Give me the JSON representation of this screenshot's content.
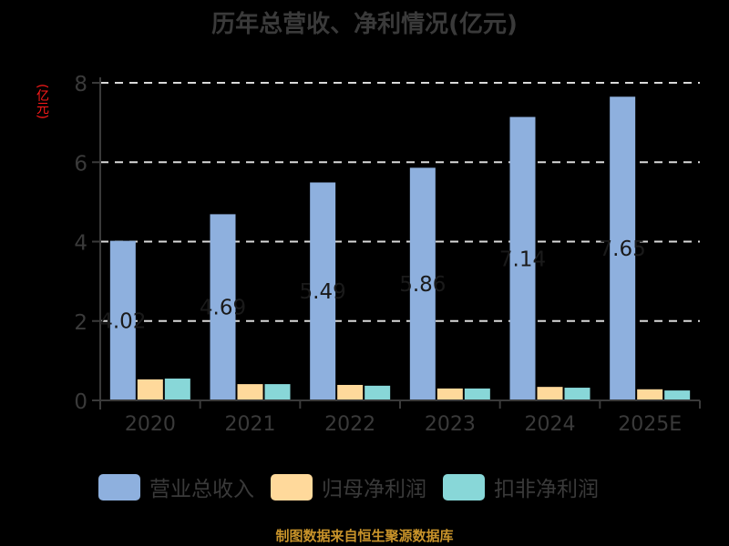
{
  "title": "历年总营收、净利情况(亿元)",
  "y_unit_label": "(亿元)",
  "source_note": "制图数据来自恒生聚源数据库",
  "legend": [
    {
      "label": "营业总收入",
      "color": "#8eb0de"
    },
    {
      "label": "归母净利润",
      "color": "#ffd99b"
    },
    {
      "label": "扣非净利润",
      "color": "#88d7d8"
    }
  ],
  "chart_data": {
    "type": "bar",
    "title": "历年总营收、净利情况(亿元)",
    "xlabel": "",
    "ylabel": "(亿元)",
    "ylim": [
      0,
      8
    ],
    "yticks": [
      0,
      2,
      4,
      6,
      8
    ],
    "grid": true,
    "legend_position": "bottom",
    "categories": [
      "2020",
      "2021",
      "2022",
      "2023",
      "2024",
      "2025E"
    ],
    "series": [
      {
        "name": "营业总收入",
        "color": "#8eb0de",
        "values": [
          4.02,
          4.69,
          5.49,
          5.86,
          7.14,
          7.65
        ],
        "labels": [
          "4.02",
          "4.69",
          "5.49",
          "5.86",
          "7.14",
          "7.65"
        ]
      },
      {
        "name": "归母净利润",
        "color": "#ffd99b",
        "values": [
          0.53,
          0.41,
          0.39,
          0.3,
          0.34,
          0.28
        ]
      },
      {
        "name": "扣非净利润",
        "color": "#88d7d8",
        "values": [
          0.55,
          0.41,
          0.37,
          0.3,
          0.32,
          0.25
        ]
      }
    ]
  }
}
